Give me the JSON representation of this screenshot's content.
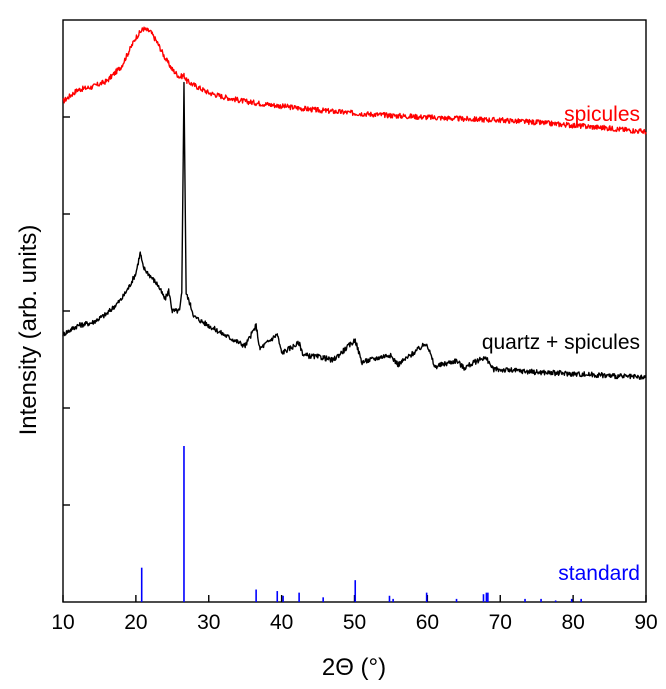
{
  "chart_data": {
    "type": "line",
    "title": "",
    "xlabel": "2Θ (°)",
    "ylabel": "Intensity (arb. units)",
    "xlim": [
      10,
      90
    ],
    "xticks": [
      10,
      20,
      30,
      40,
      50,
      60,
      70,
      80,
      90
    ],
    "y_tick_labels_shown": false,
    "grid": false,
    "legend": "inline labels",
    "series": [
      {
        "name": "spicules",
        "color": "#ff0000",
        "x": [
          10,
          12,
          14,
          16,
          18,
          19,
          20,
          21,
          22,
          23,
          24,
          25,
          26,
          26.6,
          27,
          28,
          30,
          32,
          35,
          40,
          45,
          50,
          55,
          60,
          65,
          70,
          75,
          80,
          85,
          90
        ],
        "y": [
          86,
          88,
          88.5,
          89.5,
          92,
          94.5,
          97,
          98.5,
          98,
          96,
          93.5,
          91.5,
          90.2,
          90.5,
          89.5,
          88.8,
          87.5,
          86.8,
          86,
          85.2,
          84.5,
          84,
          83.6,
          83.3,
          83,
          82.8,
          82.4,
          81.9,
          81.4,
          80.8
        ]
      },
      {
        "name": "quartz + spicules",
        "color": "#000000",
        "x": [
          10,
          12,
          14,
          16,
          18,
          19,
          20,
          20.6,
          21,
          22,
          23,
          24,
          24.5,
          25,
          26,
          26.3,
          26.6,
          26.9,
          27.5,
          28,
          30,
          32,
          35,
          36.5,
          37,
          39.4,
          40,
          42.4,
          43,
          45.7,
          47,
          50.1,
          51,
          54.8,
          56,
          59.9,
          61,
          64,
          65,
          67.7,
          68.3,
          69,
          75,
          80,
          85,
          90
        ],
        "y": [
          46,
          47.5,
          48,
          49.5,
          52,
          54,
          56.5,
          60,
          57.5,
          56,
          54.5,
          52,
          53.5,
          50,
          50,
          53,
          89,
          53,
          51,
          49,
          47.5,
          46,
          44,
          47.5,
          43.5,
          46,
          42.8,
          44.5,
          42.4,
          42,
          41.5,
          45,
          41.2,
          42.5,
          40.8,
          44.5,
          40.4,
          41.5,
          40.2,
          42,
          41.5,
          40,
          39.5,
          39.2,
          38.9,
          38.5
        ]
      }
    ],
    "standard": {
      "name": "standard",
      "color": "#0000ff",
      "lines": [
        {
          "x": 20.8,
          "intensity": 22
        },
        {
          "x": 26.6,
          "intensity": 100
        },
        {
          "x": 36.5,
          "intensity": 8
        },
        {
          "x": 39.4,
          "intensity": 7
        },
        {
          "x": 40.2,
          "intensity": 4
        },
        {
          "x": 42.4,
          "intensity": 6
        },
        {
          "x": 45.7,
          "intensity": 3
        },
        {
          "x": 50.1,
          "intensity": 14
        },
        {
          "x": 54.8,
          "intensity": 4
        },
        {
          "x": 55.3,
          "intensity": 2
        },
        {
          "x": 59.9,
          "intensity": 6
        },
        {
          "x": 64,
          "intensity": 2
        },
        {
          "x": 67.7,
          "intensity": 5
        },
        {
          "x": 68.1,
          "intensity": 6
        },
        {
          "x": 68.3,
          "intensity": 6
        },
        {
          "x": 73.4,
          "intensity": 2
        },
        {
          "x": 75.6,
          "intensity": 2
        },
        {
          "x": 77.6,
          "intensity": 1
        },
        {
          "x": 79.8,
          "intensity": 2
        },
        {
          "x": 81.1,
          "intensity": 2
        }
      ]
    }
  }
}
